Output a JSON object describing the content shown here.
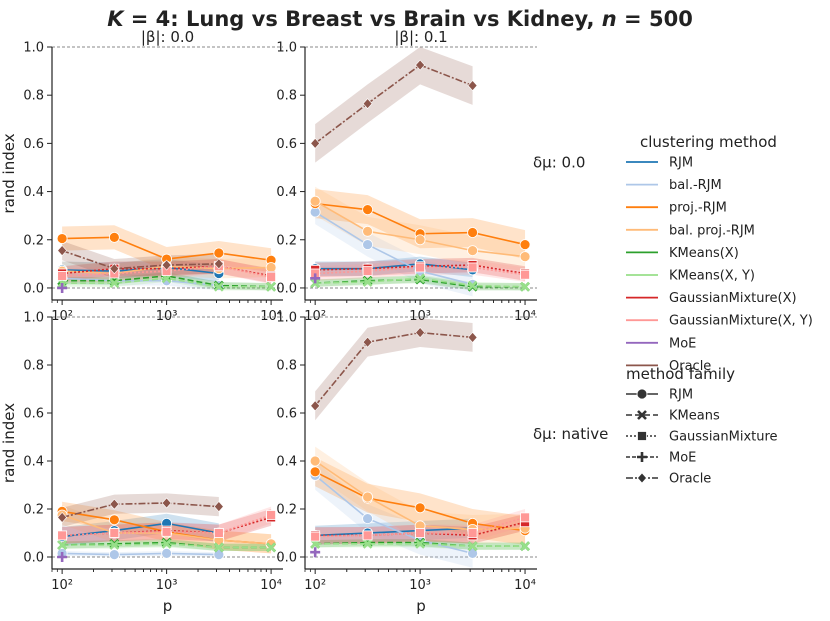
{
  "figure": {
    "title": "K = 4: Lung vs Breast vs Brain vs Kidney, n = 500",
    "title_parts": [
      "K",
      " = 4: Lung vs Breast vs Brain vs Kidney, ",
      "n",
      " = 500"
    ],
    "col_titles": [
      "|β|: 0.0",
      "|β|: 0.1"
    ],
    "row_titles": [
      "δμ: 0.0",
      "δμ: native"
    ],
    "ylabel": "rand index",
    "xlabel": "p"
  },
  "legend": {
    "method_title": "clustering method",
    "methods": [
      {
        "name": "RJM",
        "color": "#1f77b4"
      },
      {
        "name": "bal.-RJM",
        "color": "#aec7e8"
      },
      {
        "name": "proj.-RJM",
        "color": "#ff7f0e"
      },
      {
        "name": "bal. proj.-RJM",
        "color": "#ffbb78"
      },
      {
        "name": "KMeans(X)",
        "color": "#2ca02c"
      },
      {
        "name": "KMeans(X, Y)",
        "color": "#98df8a"
      },
      {
        "name": "GaussianMixture(X)",
        "color": "#d62728"
      },
      {
        "name": "GaussianMixture(X, Y)",
        "color": "#ff9896"
      },
      {
        "name": "MoE",
        "color": "#9467bd"
      },
      {
        "name": "Oracle",
        "color": "#8c564b"
      }
    ],
    "family_title": "method family",
    "families": [
      {
        "name": "RJM",
        "dash": "",
        "marker": "circle"
      },
      {
        "name": "KMeans",
        "dash": "6,3",
        "marker": "x"
      },
      {
        "name": "GaussianMixture",
        "dash": "2,2",
        "marker": "square"
      },
      {
        "name": "MoE",
        "dash": "4,2",
        "marker": "plus"
      },
      {
        "name": "Oracle",
        "dash": "7,2,2,2",
        "marker": "diamond"
      }
    ]
  },
  "chart_data": {
    "type": "line",
    "xscale": "log",
    "xlim": [
      80,
      13000
    ],
    "ylim": [
      -0.05,
      1.0
    ],
    "xticks": [
      100,
      1000,
      10000
    ],
    "xtick_labels": [
      "10²",
      "10³",
      "10⁴"
    ],
    "yticks": [
      0.0,
      0.2,
      0.4,
      0.6,
      0.8,
      1.0
    ],
    "ytick_labels": [
      "0.0",
      "0.2",
      "0.4",
      "0.6",
      "0.8",
      "1.0"
    ],
    "x": [
      100,
      316,
      1000,
      3162,
      10000
    ],
    "panels": [
      {
        "row": "δμ: 0.0",
        "col": "|β|: 0.0",
        "series": [
          {
            "method": "RJM",
            "values": [
              0.075,
              0.07,
              0.085,
              0.06,
              null
            ],
            "band": 0.035
          },
          {
            "method": "bal.-RJM",
            "values": [
              0.04,
              0.03,
              0.03,
              0.01,
              null
            ],
            "band": 0.02
          },
          {
            "method": "proj.-RJM",
            "values": [
              0.205,
              0.21,
              0.12,
              0.145,
              0.115
            ],
            "band": 0.05
          },
          {
            "method": "bal. proj.-RJM",
            "values": [
              0.07,
              0.06,
              0.09,
              0.08,
              0.085
            ],
            "band": 0.04
          },
          {
            "method": "KMeans(X)",
            "values": [
              0.03,
              0.03,
              0.05,
              0.01,
              0.005
            ],
            "band": 0.015
          },
          {
            "method": "KMeans(X, Y)",
            "values": [
              0.02,
              0.02,
              0.04,
              0.005,
              0.005
            ],
            "band": 0.015
          },
          {
            "method": "GaussianMixture(X)",
            "values": [
              0.06,
              0.08,
              0.08,
              0.09,
              0.05
            ],
            "band": 0.03
          },
          {
            "method": "GaussianMixture(X, Y)",
            "values": [
              0.05,
              0.06,
              0.07,
              0.09,
              0.045
            ],
            "band": 0.03
          },
          {
            "method": "MoE",
            "values": [
              0.0,
              null,
              null,
              null,
              null
            ],
            "band": 0.0
          },
          {
            "method": "Oracle",
            "values": [
              0.155,
              0.08,
              0.095,
              0.1,
              null
            ],
            "band": 0.04
          }
        ]
      },
      {
        "row": "δμ: 0.0",
        "col": "|β|: 0.1",
        "series": [
          {
            "method": "RJM",
            "values": [
              0.08,
              0.08,
              0.1,
              0.075,
              null
            ],
            "band": 0.03
          },
          {
            "method": "bal.-RJM",
            "values": [
              0.315,
              0.18,
              0.07,
              0.015,
              null
            ],
            "band": 0.05
          },
          {
            "method": "proj.-RJM",
            "values": [
              0.35,
              0.325,
              0.225,
              0.23,
              0.18
            ],
            "band": 0.06
          },
          {
            "method": "bal. proj.-RJM",
            "values": [
              0.36,
              0.235,
              0.2,
              0.155,
              0.13
            ],
            "band": 0.06
          },
          {
            "method": "KMeans(X)",
            "values": [
              0.02,
              0.03,
              0.035,
              0.005,
              0.005
            ],
            "band": 0.015
          },
          {
            "method": "KMeans(X, Y)",
            "values": [
              0.02,
              0.025,
              0.04,
              0.01,
              0.005
            ],
            "band": 0.015
          },
          {
            "method": "GaussianMixture(X)",
            "values": [
              0.075,
              0.08,
              0.09,
              0.095,
              0.06
            ],
            "band": 0.03
          },
          {
            "method": "GaussianMixture(X, Y)",
            "values": [
              0.06,
              0.07,
              0.085,
              0.085,
              0.055
            ],
            "band": 0.03
          },
          {
            "method": "MoE",
            "values": [
              0.04,
              null,
              null,
              null,
              null
            ],
            "band": 0.0
          },
          {
            "method": "Oracle",
            "values": [
              0.6,
              0.765,
              0.925,
              0.84,
              null
            ],
            "band": 0.08
          }
        ]
      },
      {
        "row": "δμ: native",
        "col": "|β|: 0.0",
        "series": [
          {
            "method": "RJM",
            "values": [
              0.085,
              0.11,
              0.14,
              0.1,
              null
            ],
            "band": 0.04
          },
          {
            "method": "bal.-RJM",
            "values": [
              0.015,
              0.01,
              0.015,
              0.01,
              null
            ],
            "band": 0.01
          },
          {
            "method": "proj.-RJM",
            "values": [
              0.19,
              0.155,
              0.105,
              0.07,
              0.055
            ],
            "band": 0.04
          },
          {
            "method": "bal. proj.-RJM",
            "values": [
              0.175,
              0.1,
              0.1,
              0.07,
              0.055
            ],
            "band": 0.04
          },
          {
            "method": "KMeans(X)",
            "values": [
              0.05,
              0.055,
              0.06,
              0.04,
              0.04
            ],
            "band": 0.015
          },
          {
            "method": "KMeans(X, Y)",
            "values": [
              0.05,
              0.05,
              0.055,
              0.04,
              0.04
            ],
            "band": 0.015
          },
          {
            "method": "GaussianMixture(X)",
            "values": [
              0.09,
              0.1,
              0.11,
              0.1,
              0.165
            ],
            "band": 0.035
          },
          {
            "method": "GaussianMixture(X, Y)",
            "values": [
              0.09,
              0.1,
              0.105,
              0.1,
              0.175
            ],
            "band": 0.035
          },
          {
            "method": "MoE",
            "values": [
              0.0,
              null,
              null,
              null,
              null
            ],
            "band": 0.0
          },
          {
            "method": "Oracle",
            "values": [
              0.165,
              0.22,
              0.225,
              0.21,
              null
            ],
            "band": 0.04
          }
        ]
      },
      {
        "row": "δμ: native",
        "col": "|β|: 0.1",
        "series": [
          {
            "method": "RJM",
            "values": [
              0.09,
              0.1,
              0.11,
              0.12,
              null
            ],
            "band": 0.04
          },
          {
            "method": "bal.-RJM",
            "values": [
              0.34,
              0.16,
              0.07,
              0.015,
              null
            ],
            "band": 0.06
          },
          {
            "method": "proj.-RJM",
            "values": [
              0.355,
              0.245,
              0.205,
              0.14,
              0.11
            ],
            "band": 0.06
          },
          {
            "method": "bal. proj.-RJM",
            "values": [
              0.4,
              0.25,
              0.13,
              0.115,
              0.12
            ],
            "band": 0.06
          },
          {
            "method": "KMeans(X)",
            "values": [
              0.055,
              0.06,
              0.06,
              0.045,
              0.045
            ],
            "band": 0.015
          },
          {
            "method": "KMeans(X, Y)",
            "values": [
              0.055,
              0.055,
              0.055,
              0.045,
              0.045
            ],
            "band": 0.015
          },
          {
            "method": "GaussianMixture(X)",
            "values": [
              0.09,
              0.09,
              0.1,
              0.09,
              0.145
            ],
            "band": 0.035
          },
          {
            "method": "GaussianMixture(X, Y)",
            "values": [
              0.085,
              0.09,
              0.1,
              0.1,
              0.165
            ],
            "band": 0.035
          },
          {
            "method": "MoE",
            "values": [
              0.02,
              null,
              null,
              null,
              null
            ],
            "band": 0.0
          },
          {
            "method": "Oracle",
            "values": [
              0.63,
              0.895,
              0.935,
              0.915,
              null
            ],
            "band": 0.06
          }
        ]
      }
    ]
  }
}
